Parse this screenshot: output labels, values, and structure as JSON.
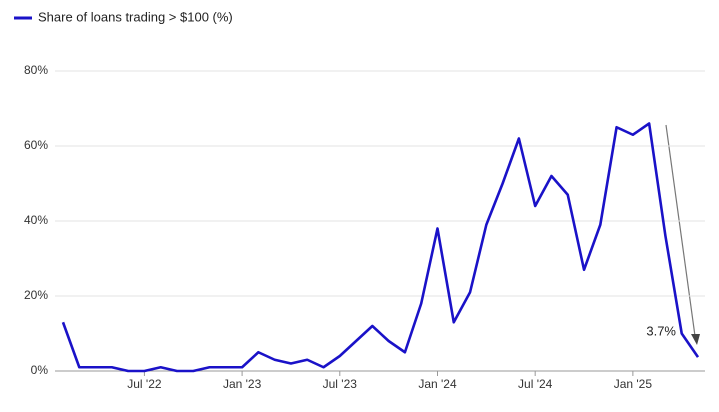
{
  "chart_data": {
    "type": "line",
    "x": [
      "2022-02",
      "2022-03",
      "2022-04",
      "2022-05",
      "2022-06",
      "2022-07",
      "2022-08",
      "2022-09",
      "2022-10",
      "2022-11",
      "2022-12",
      "2023-01",
      "2023-02",
      "2023-03",
      "2023-04",
      "2023-05",
      "2023-06",
      "2023-07",
      "2023-08",
      "2023-09",
      "2023-10",
      "2023-11",
      "2023-12",
      "2024-01",
      "2024-02",
      "2024-03",
      "2024-04",
      "2024-05",
      "2024-06",
      "2024-07",
      "2024-08",
      "2024-09",
      "2024-10",
      "2024-11",
      "2024-12",
      "2025-01",
      "2025-02",
      "2025-03",
      "2025-04",
      "2025-05"
    ],
    "series": [
      {
        "name": "Share of loans trading > $100 (%)",
        "color": "#1a12c8",
        "values": [
          13,
          1,
          1,
          1,
          0,
          0,
          1,
          0,
          0,
          1,
          1,
          1,
          5,
          3,
          2,
          3,
          1,
          4,
          8,
          12,
          8,
          5,
          18,
          38,
          13,
          21,
          39,
          50,
          62,
          44,
          52,
          47,
          27,
          39,
          65,
          63,
          66,
          36,
          10,
          3.7
        ],
        "value_labels": [
          null,
          null,
          null,
          null,
          null,
          null,
          null,
          null,
          null,
          null,
          null,
          null,
          null,
          null,
          null,
          null,
          null,
          null,
          null,
          null,
          null,
          null,
          null,
          null,
          null,
          null,
          null,
          null,
          null,
          null,
          null,
          null,
          null,
          null,
          null,
          null,
          null,
          null,
          null,
          "3.7%"
        ]
      }
    ],
    "ylim": [
      0,
      80
    ],
    "yticks": [
      {
        "value": 0,
        "label": "0%"
      },
      {
        "value": 20,
        "label": "20%"
      },
      {
        "value": 40,
        "label": "40%"
      },
      {
        "value": 60,
        "label": "60%"
      },
      {
        "value": 80,
        "label": "80%"
      }
    ],
    "xticks": [
      {
        "value": "2022-07",
        "label": "Jul '22"
      },
      {
        "value": "2023-01",
        "label": "Jan '23"
      },
      {
        "value": "2023-07",
        "label": "Jul '23"
      },
      {
        "value": "2024-01",
        "label": "Jan '24"
      },
      {
        "value": "2024-07",
        "label": "Jul '24"
      },
      {
        "value": "2025-01",
        "label": "Jan '25"
      }
    ],
    "grid": true,
    "legend": "top-left"
  }
}
